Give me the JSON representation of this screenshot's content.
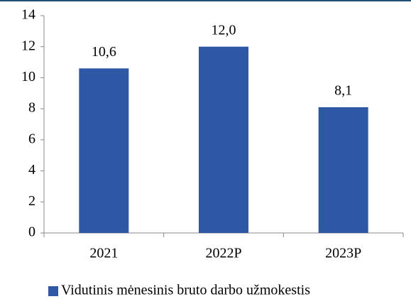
{
  "chart_data": {
    "type": "bar",
    "categories": [
      "2021",
      "2022P",
      "2023P"
    ],
    "series": [
      {
        "name": "Vidutinis mėnesinis bruto darbo užmokestis",
        "color": "#2e58a6",
        "values": [
          10.6,
          12.0,
          8.1
        ],
        "value_labels": [
          "10,6",
          "12,0",
          "8,1"
        ]
      }
    ],
    "ylim": [
      0,
      14
    ],
    "yticks": [
      0,
      2,
      4,
      6,
      8,
      10,
      12,
      14
    ],
    "grid": false,
    "legend": "bottom"
  }
}
